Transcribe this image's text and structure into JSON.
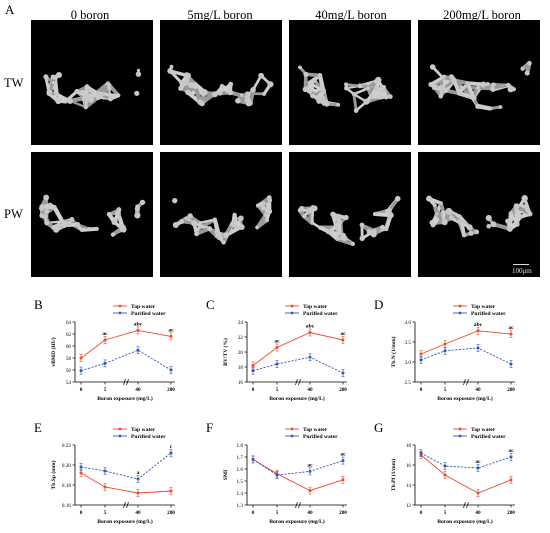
{
  "figure_labels": {
    "A": "A",
    "B": "B",
    "C": "C",
    "D": "D",
    "E": "E",
    "F": "F",
    "G": "G"
  },
  "column_headers": [
    "0 boron",
    "5mg/L boron",
    "40mg/L boron",
    "200mg/L boron"
  ],
  "row_headers": [
    "TW",
    "PW"
  ],
  "scale_bar_label": "100μm",
  "colors": {
    "tap": "#ee4a2b",
    "purified": "#3559b6"
  },
  "chart_data": [
    {
      "id": "B",
      "type": "line",
      "ylabel": "vBMD (HU)",
      "xlabel": "Boron exposure (mg/L)",
      "categories": [
        "0",
        "5",
        "40",
        "200"
      ],
      "ylim": [
        54,
        64
      ],
      "yticks": [
        54,
        56,
        58,
        60,
        62,
        64
      ],
      "series": [
        {
          "name": "Tap water",
          "values": [
            58.0,
            61.0,
            62.6,
            61.6
          ]
        },
        {
          "name": "Purified water",
          "values": [
            55.9,
            57.1,
            59.3,
            56.0
          ]
        }
      ],
      "annotations": [
        "",
        "ac",
        "abc",
        "ac"
      ]
    },
    {
      "id": "C",
      "type": "line",
      "ylabel": "BV/TV (%)",
      "xlabel": "Boron exposure (mg/L)",
      "categories": [
        "0",
        "5",
        "40",
        "200"
      ],
      "ylim": [
        16,
        24
      ],
      "yticks": [
        16,
        18,
        20,
        22,
        24
      ],
      "series": [
        {
          "name": "Tap water",
          "values": [
            18.2,
            20.6,
            22.6,
            21.6
          ]
        },
        {
          "name": "Purified water",
          "values": [
            17.5,
            18.4,
            19.3,
            17.2
          ]
        }
      ],
      "annotations": [
        "",
        "ac",
        "abc",
        "ac"
      ]
    },
    {
      "id": "D",
      "type": "line",
      "ylabel": "Tb.N (1/mm)",
      "xlabel": "Boron exposure (mg/L)",
      "categories": [
        "0",
        "5",
        "40",
        "200"
      ],
      "ylim": [
        2.5,
        4.0
      ],
      "yticks": [
        2.5,
        3.0,
        3.5,
        4.0
      ],
      "series": [
        {
          "name": "Tap water",
          "values": [
            3.2,
            3.45,
            3.78,
            3.7
          ]
        },
        {
          "name": "Purified water",
          "values": [
            3.05,
            3.28,
            3.35,
            2.95
          ]
        }
      ],
      "annotations": [
        "",
        "",
        "abc",
        "ac"
      ]
    },
    {
      "id": "E",
      "type": "line",
      "ylabel": "Tb.Sp (mm)",
      "xlabel": "Boron exposure (mg/L)",
      "categories": [
        "0",
        "5",
        "40",
        "200"
      ],
      "ylim": [
        0.16,
        0.22
      ],
      "yticks": [
        0.16,
        0.18,
        0.2,
        0.22
      ],
      "series": [
        {
          "name": "Tap water",
          "values": [
            0.192,
            0.178,
            0.172,
            0.174
          ]
        },
        {
          "name": "Purified water",
          "values": [
            0.198,
            0.194,
            0.186,
            0.212
          ]
        }
      ],
      "annotations": [
        "",
        "",
        "a",
        "c"
      ]
    },
    {
      "id": "F",
      "type": "line",
      "ylabel": "SMI",
      "xlabel": "Boron exposure (mg/L)",
      "categories": [
        "0",
        "5",
        "40",
        "200"
      ],
      "ylim": [
        1.3,
        1.8
      ],
      "yticks": [
        1.3,
        1.4,
        1.5,
        1.6,
        1.7,
        1.8
      ],
      "series": [
        {
          "name": "Tap water",
          "values": [
            1.68,
            1.56,
            1.42,
            1.51
          ]
        },
        {
          "name": "Purified water",
          "values": [
            1.68,
            1.55,
            1.58,
            1.67
          ]
        }
      ],
      "annotations": [
        "",
        "",
        "ac",
        "ac"
      ]
    },
    {
      "id": "G",
      "type": "line",
      "ylabel": "Tb.Pf (1/mm)",
      "xlabel": "Boron exposure (mg/L)",
      "categories": [
        "0",
        "5",
        "40",
        "200"
      ],
      "ylim": [
        12,
        18
      ],
      "yticks": [
        12,
        14,
        16,
        18
      ],
      "series": [
        {
          "name": "Tap water",
          "values": [
            17.0,
            15.0,
            13.2,
            14.5
          ]
        },
        {
          "name": "Purified water",
          "values": [
            17.2,
            15.9,
            15.7,
            16.8
          ]
        }
      ],
      "annotations": [
        "",
        "",
        "ac",
        "ac"
      ]
    }
  ]
}
